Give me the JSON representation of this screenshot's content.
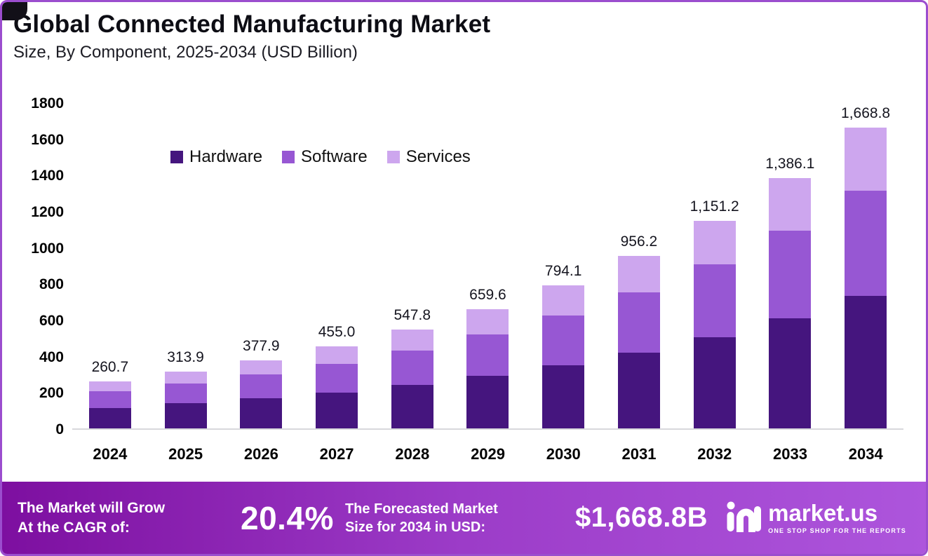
{
  "header": {
    "title": "Global Connected Manufacturing Market",
    "subtitle": "Size, By Component, 2025-2034 (USD Billion)"
  },
  "chart_data": {
    "type": "bar",
    "stacked": true,
    "title": "Global Connected Manufacturing Market Size, By Component, 2025-2034 (USD Billion)",
    "categories": [
      "2024",
      "2025",
      "2026",
      "2027",
      "2028",
      "2029",
      "2030",
      "2031",
      "2032",
      "2033",
      "2034"
    ],
    "series": [
      {
        "name": "Hardware",
        "color": "#45157e",
        "values": [
          114.7,
          138.1,
          166.3,
          200.2,
          241.0,
          290.2,
          349.4,
          420.7,
          506.5,
          609.9,
          734.3
        ]
      },
      {
        "name": "Software",
        "color": "#9757d3",
        "values": [
          91.2,
          109.9,
          132.3,
          159.3,
          191.7,
          230.9,
          277.9,
          334.7,
          402.9,
          485.1,
          584.1
        ]
      },
      {
        "name": "Services",
        "color": "#cda6ee",
        "values": [
          54.8,
          65.9,
          79.3,
          95.5,
          115.1,
          138.5,
          166.8,
          200.8,
          241.8,
          291.1,
          350.4
        ]
      }
    ],
    "totals": [
      260.7,
      313.9,
      377.9,
      455.0,
      547.8,
      659.6,
      794.1,
      956.2,
      1151.2,
      1386.1,
      1668.8
    ],
    "total_labels": [
      "260.7",
      "313.9",
      "377.9",
      "455.0",
      "547.8",
      "659.6",
      "794.1",
      "956.2",
      "1,151.2",
      "1,386.1",
      "1,668.8"
    ],
    "xlabel": "",
    "ylabel": "",
    "ylim": [
      0,
      1800
    ],
    "ytick_step": 200,
    "grid": false,
    "legend_position": "top-left-inside"
  },
  "footer": {
    "cagr_label_line1": "The Market will Grow",
    "cagr_label_line2": "At the CAGR of:",
    "cagr_value": "20.4%",
    "forecast_label_line1": "The Forecasted Market",
    "forecast_label_line2": "Size for 2034 in USD:",
    "forecast_value": "$1,668.8B",
    "brand": "market.us",
    "brand_tagline": "ONE STOP SHOP FOR THE REPORTS"
  },
  "colors": {
    "border": "#9b4dce",
    "footer_gradient_start": "#7d0fa0",
    "footer_gradient_end": "#ad55dc",
    "hardware": "#45157e",
    "software": "#9757d3",
    "services": "#cda6ee"
  }
}
